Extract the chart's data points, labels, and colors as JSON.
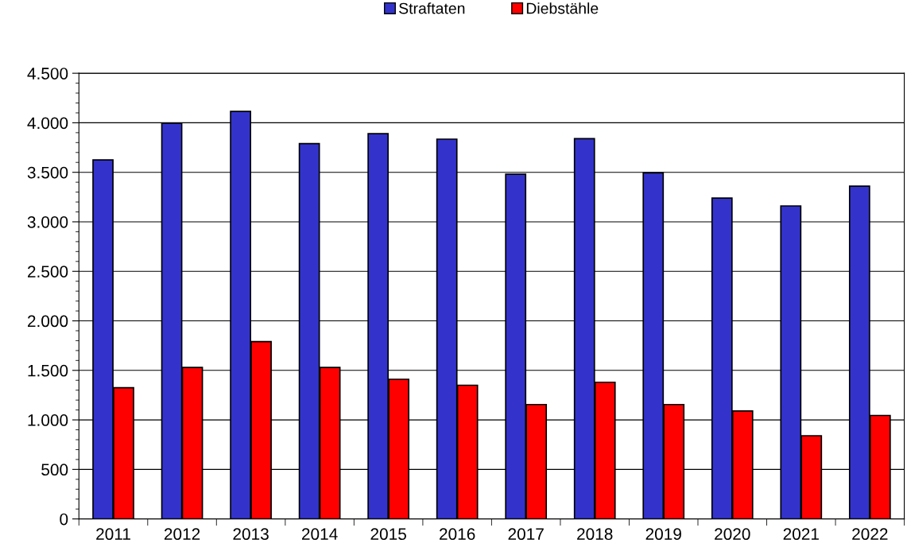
{
  "chart_data": {
    "type": "bar",
    "categories": [
      "2011",
      "2012",
      "2013",
      "2014",
      "2015",
      "2016",
      "2017",
      "2018",
      "2019",
      "2020",
      "2021",
      "2022"
    ],
    "series": [
      {
        "name": "Straftaten",
        "color": "#3333cc",
        "values": [
          3625,
          3995,
          4115,
          3790,
          3890,
          3835,
          3480,
          3840,
          3495,
          3240,
          3160,
          3360
        ]
      },
      {
        "name": "Diebstähle",
        "color": "#ff0000",
        "values": [
          1325,
          1530,
          1790,
          1530,
          1410,
          1350,
          1155,
          1380,
          1155,
          1090,
          840,
          1045
        ]
      }
    ],
    "ylim": [
      0,
      4500
    ],
    "yticks": [
      {
        "value": 0,
        "label": "0"
      },
      {
        "value": 500,
        "label": "500"
      },
      {
        "value": 1000,
        "label": "1.000"
      },
      {
        "value": 1500,
        "label": "1.500"
      },
      {
        "value": 2000,
        "label": "2.000"
      },
      {
        "value": 2500,
        "label": "2.500"
      },
      {
        "value": 3000,
        "label": "3.000"
      },
      {
        "value": 3500,
        "label": "3.500"
      },
      {
        "value": 4000,
        "label": "4.000"
      },
      {
        "value": 4500,
        "label": "4.500"
      }
    ],
    "grid": "y",
    "legend": "top"
  }
}
